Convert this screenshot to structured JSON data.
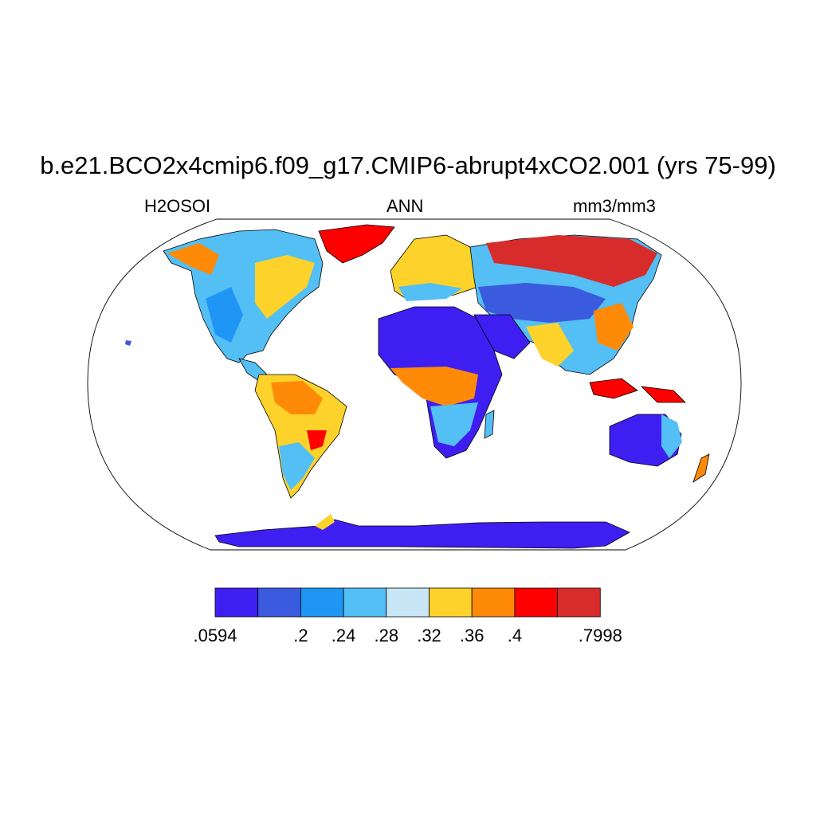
{
  "title": "b.e21.BCO2x4cmip6.f09_g17.CMIP6-abrupt4xCO2.001 (yrs 75-99)",
  "left_label": "H2OSOI",
  "center_label": "ANN",
  "right_label": "mm3/mm3",
  "colorbar": {
    "colors": [
      "#3f1ef2",
      "#3b5bdf",
      "#1f96f6",
      "#53bff4",
      "#c8e6f6",
      "#fdd22a",
      "#fe8a07",
      "#fe0000",
      "#d82b2b"
    ],
    "tick_labels": [
      ".0594",
      ".2",
      ".24",
      ".28",
      ".32",
      ".36",
      ".4",
      ".7998"
    ],
    "tick_boundary_index": [
      0,
      2,
      3,
      4,
      5,
      6,
      7,
      9
    ]
  },
  "regions": [
    {
      "name": "sahara",
      "value_class": 0
    },
    {
      "name": "arabia",
      "value_class": 0
    },
    {
      "name": "australia-interior",
      "value_class": 0
    },
    {
      "name": "central-asia",
      "value_class": 1
    },
    {
      "name": "siberia",
      "value_class": 8
    },
    {
      "name": "amazon",
      "value_class": 6
    },
    {
      "name": "congo",
      "value_class": 6
    },
    {
      "name": "north-america",
      "value_class": 3
    },
    {
      "name": "antarctica-coast",
      "value_class": 0
    }
  ]
}
